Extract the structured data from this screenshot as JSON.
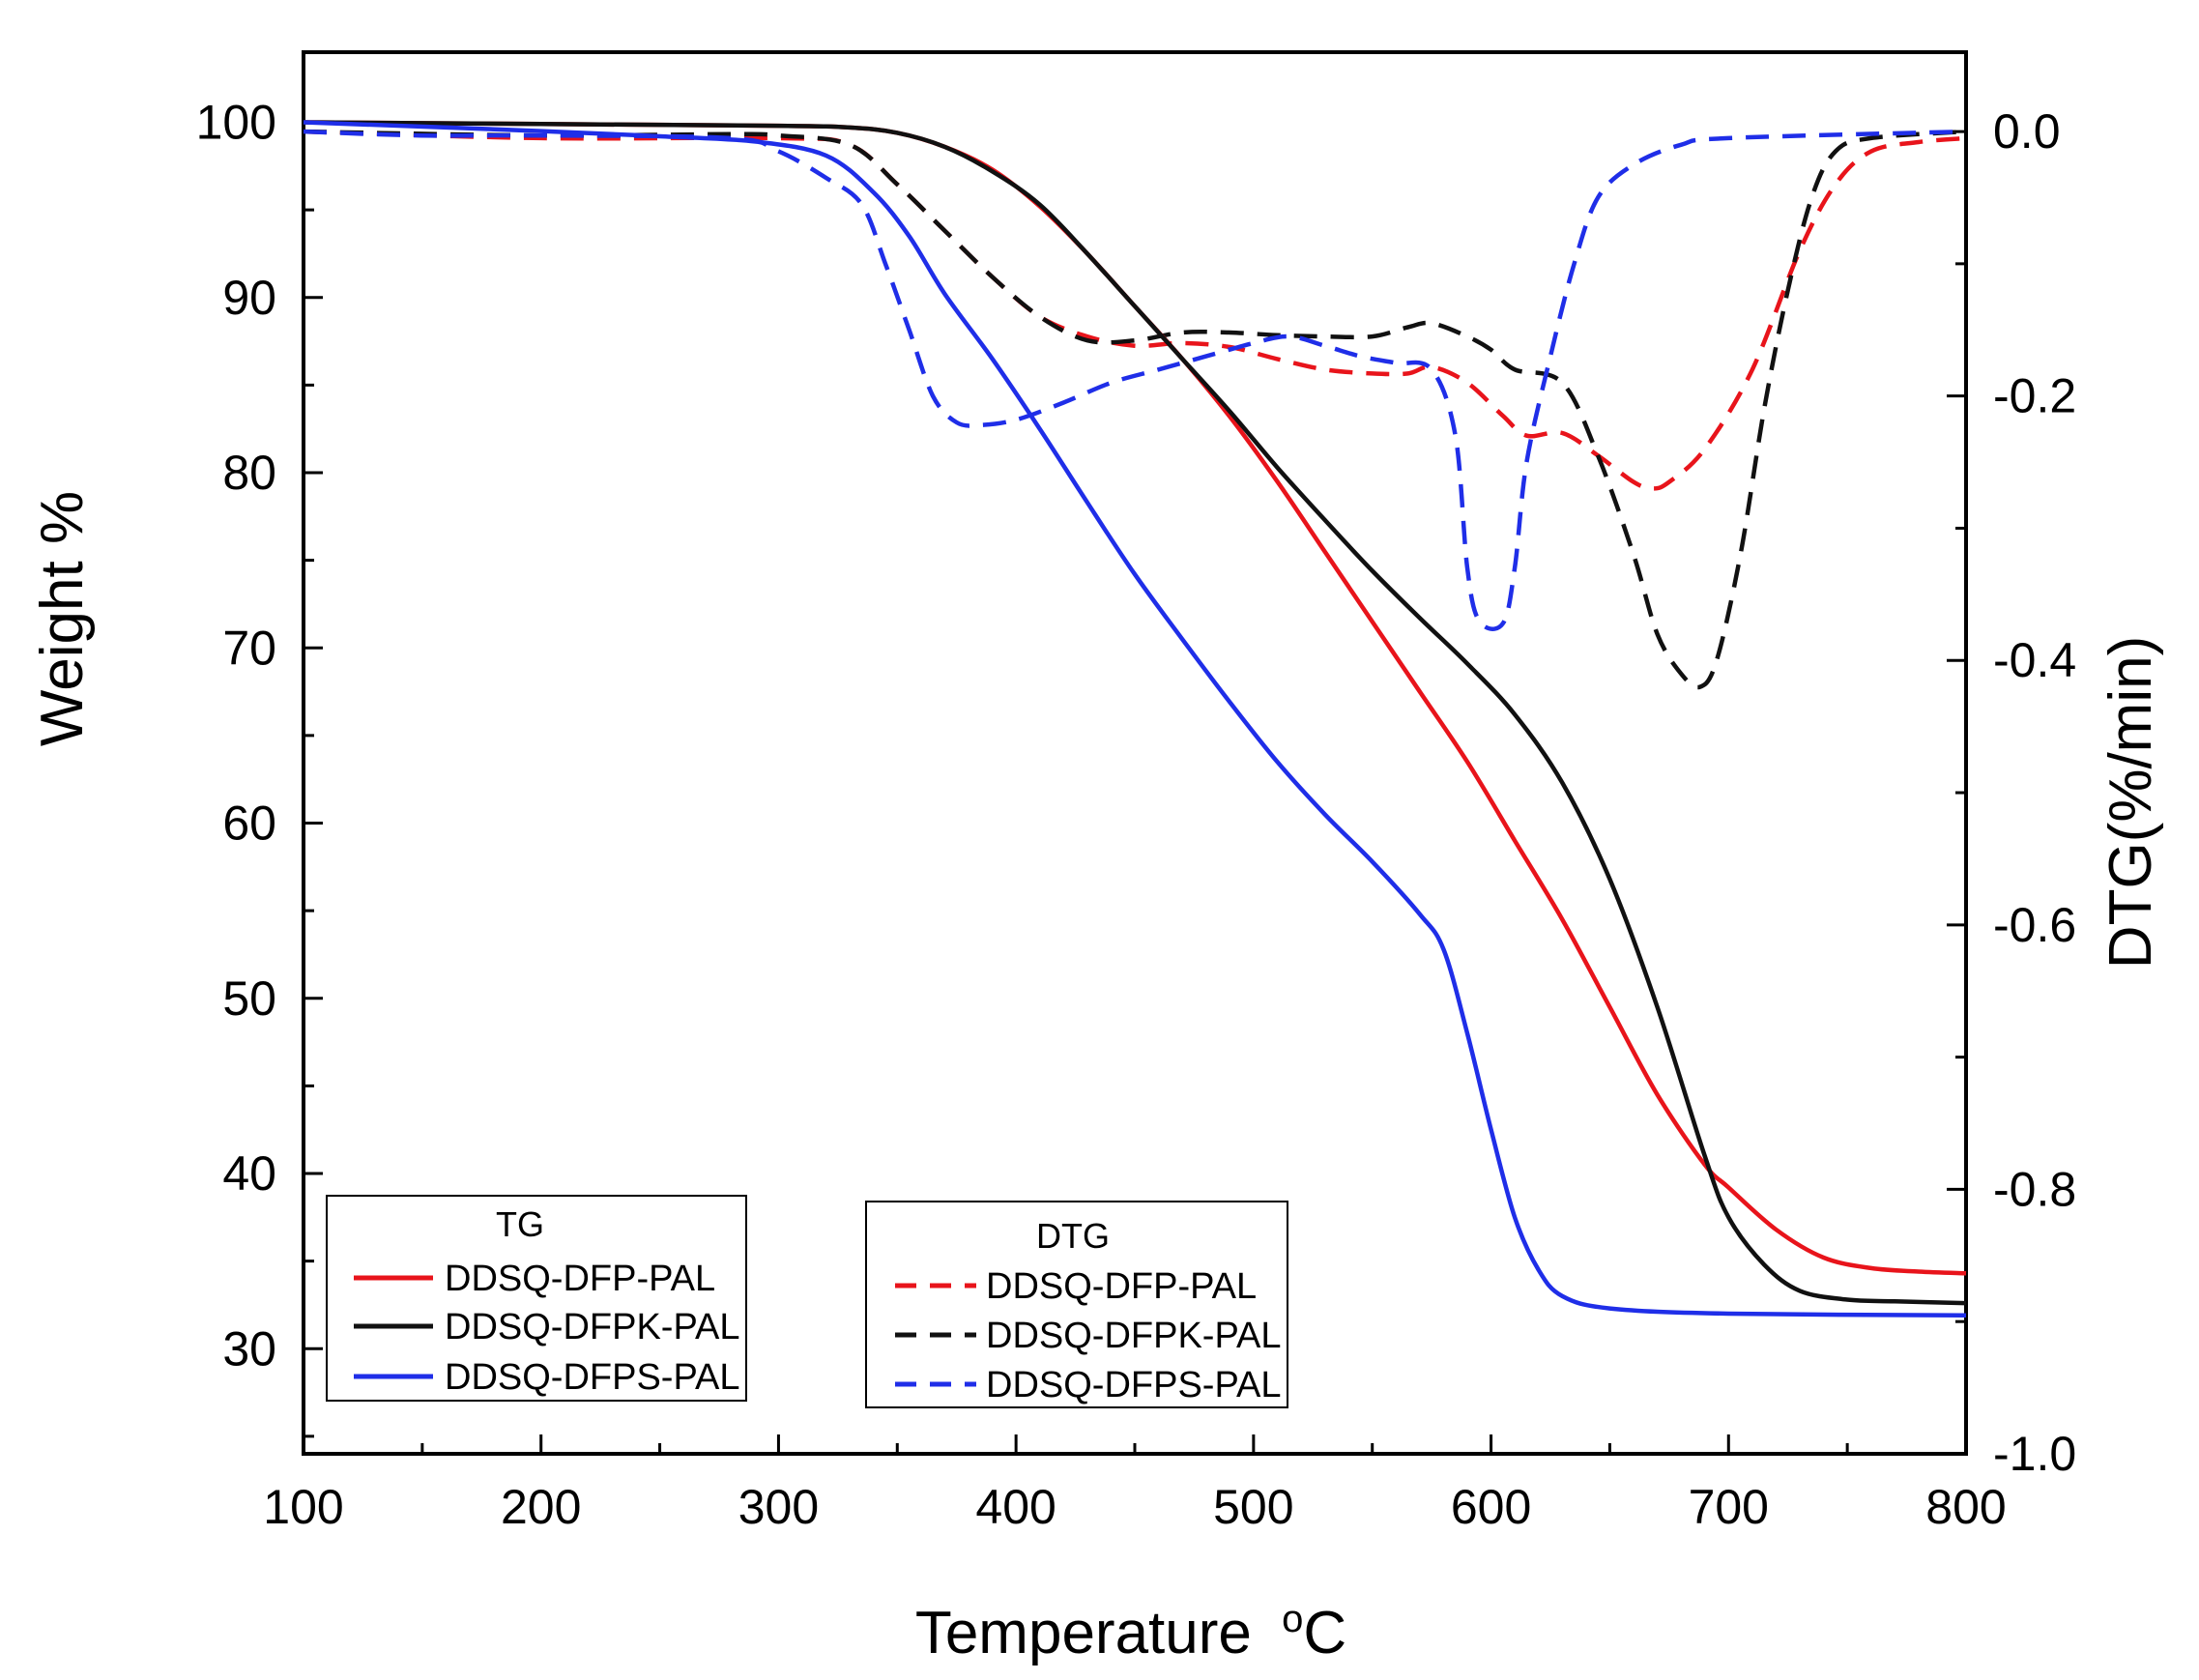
{
  "chart_data": {
    "type": "line",
    "title": "",
    "xlabel": "Temperature",
    "xlabel_unit": "°C",
    "ylabel_left": "Weight %",
    "ylabel_right": "DTG(%/min)",
    "xlim": [
      100,
      800
    ],
    "ylim_left": [
      24,
      104
    ],
    "ylim_right": [
      -1.0,
      0.06
    ],
    "x_ticks": [
      100,
      200,
      300,
      400,
      500,
      600,
      700,
      800
    ],
    "y_left_ticks": [
      30,
      40,
      50,
      60,
      70,
      80,
      90,
      100
    ],
    "y_right_ticks": [
      -1.0,
      -0.8,
      -0.6,
      -0.4,
      -0.2,
      0.0
    ],
    "y_right_tick_labels": [
      "-1.0",
      "-0.8",
      "-0.6",
      "-0.4",
      "-0.2",
      "0.0"
    ],
    "grid": false,
    "legends": {
      "tg": {
        "title": "TG",
        "position": "bottom-left"
      },
      "dtg": {
        "title": "DTG",
        "position": "bottom-center"
      }
    },
    "colors": {
      "red": "#e8141b",
      "black": "#111111",
      "blue": "#1f2ee8"
    },
    "tg_series": [
      {
        "name": "DDSQ-DFP-PAL",
        "color": "#e8141b",
        "points": [
          [
            100,
            100
          ],
          [
            200,
            99.9
          ],
          [
            300,
            99.8
          ],
          [
            330,
            99.7
          ],
          [
            350,
            99.4
          ],
          [
            370,
            98.6
          ],
          [
            390,
            97.3
          ],
          [
            410,
            95.2
          ],
          [
            430,
            92.5
          ],
          [
            450,
            89.5
          ],
          [
            470,
            86.5
          ],
          [
            490,
            83.2
          ],
          [
            510,
            79.5
          ],
          [
            530,
            75.5
          ],
          [
            550,
            71.5
          ],
          [
            570,
            67.5
          ],
          [
            590,
            63.5
          ],
          [
            610,
            59.0
          ],
          [
            630,
            54.5
          ],
          [
            650,
            49.5
          ],
          [
            670,
            44.5
          ],
          [
            690,
            40.5
          ],
          [
            700,
            39.2
          ],
          [
            720,
            36.8
          ],
          [
            740,
            35.2
          ],
          [
            760,
            34.6
          ],
          [
            780,
            34.4
          ],
          [
            800,
            34.3
          ]
        ]
      },
      {
        "name": "DDSQ-DFPK-PAL",
        "color": "#111111",
        "points": [
          [
            100,
            100
          ],
          [
            200,
            99.9
          ],
          [
            300,
            99.8
          ],
          [
            330,
            99.7
          ],
          [
            350,
            99.4
          ],
          [
            370,
            98.6
          ],
          [
            390,
            97.2
          ],
          [
            410,
            95.3
          ],
          [
            430,
            92.5
          ],
          [
            450,
            89.5
          ],
          [
            470,
            86.5
          ],
          [
            490,
            83.5
          ],
          [
            510,
            80.3
          ],
          [
            530,
            77.3
          ],
          [
            550,
            74.4
          ],
          [
            570,
            71.7
          ],
          [
            590,
            69.1
          ],
          [
            610,
            66.2
          ],
          [
            630,
            62.3
          ],
          [
            650,
            56.8
          ],
          [
            670,
            49.5
          ],
          [
            690,
            41.0
          ],
          [
            700,
            37.5
          ],
          [
            715,
            34.8
          ],
          [
            730,
            33.3
          ],
          [
            750,
            32.8
          ],
          [
            770,
            32.7
          ],
          [
            800,
            32.6
          ]
        ]
      },
      {
        "name": "DDSQ-DFPS-PAL",
        "color": "#1f2ee8",
        "points": [
          [
            100,
            100
          ],
          [
            200,
            99.5
          ],
          [
            250,
            99.2
          ],
          [
            290,
            98.9
          ],
          [
            320,
            98.1
          ],
          [
            340,
            96.0
          ],
          [
            355,
            93.5
          ],
          [
            370,
            90.2
          ],
          [
            390,
            86.5
          ],
          [
            410,
            82.5
          ],
          [
            430,
            78.3
          ],
          [
            450,
            74.2
          ],
          [
            470,
            70.5
          ],
          [
            490,
            66.9
          ],
          [
            510,
            63.5
          ],
          [
            530,
            60.5
          ],
          [
            550,
            57.8
          ],
          [
            570,
            54.8
          ],
          [
            580,
            52.8
          ],
          [
            590,
            48.0
          ],
          [
            600,
            42.5
          ],
          [
            610,
            37.5
          ],
          [
            620,
            34.5
          ],
          [
            630,
            33.0
          ],
          [
            650,
            32.3
          ],
          [
            700,
            32.0
          ],
          [
            800,
            31.9
          ]
        ]
      }
    ],
    "dtg_series": [
      {
        "name": "DDSQ-DFP-PAL",
        "color": "#e8141b",
        "points": [
          [
            100,
            0.0
          ],
          [
            200,
            -0.005
          ],
          [
            300,
            -0.005
          ],
          [
            330,
            -0.01
          ],
          [
            350,
            -0.04
          ],
          [
            370,
            -0.075
          ],
          [
            390,
            -0.11
          ],
          [
            410,
            -0.14
          ],
          [
            430,
            -0.155
          ],
          [
            450,
            -0.162
          ],
          [
            470,
            -0.16
          ],
          [
            490,
            -0.163
          ],
          [
            510,
            -0.172
          ],
          [
            530,
            -0.18
          ],
          [
            550,
            -0.183
          ],
          [
            565,
            -0.183
          ],
          [
            575,
            -0.178
          ],
          [
            590,
            -0.19
          ],
          [
            605,
            -0.215
          ],
          [
            615,
            -0.23
          ],
          [
            630,
            -0.228
          ],
          [
            645,
            -0.245
          ],
          [
            660,
            -0.265
          ],
          [
            668,
            -0.27
          ],
          [
            675,
            -0.265
          ],
          [
            690,
            -0.24
          ],
          [
            710,
            -0.18
          ],
          [
            730,
            -0.09
          ],
          [
            745,
            -0.04
          ],
          [
            760,
            -0.015
          ],
          [
            780,
            -0.008
          ],
          [
            800,
            -0.005
          ]
        ]
      },
      {
        "name": "DDSQ-DFPK-PAL",
        "color": "#111111",
        "points": [
          [
            100,
            0.0
          ],
          [
            200,
            -0.003
          ],
          [
            280,
            -0.002
          ],
          [
            300,
            -0.003
          ],
          [
            330,
            -0.01
          ],
          [
            350,
            -0.04
          ],
          [
            370,
            -0.075
          ],
          [
            390,
            -0.11
          ],
          [
            410,
            -0.14
          ],
          [
            430,
            -0.158
          ],
          [
            450,
            -0.158
          ],
          [
            470,
            -0.152
          ],
          [
            490,
            -0.152
          ],
          [
            510,
            -0.154
          ],
          [
            530,
            -0.155
          ],
          [
            550,
            -0.155
          ],
          [
            565,
            -0.148
          ],
          [
            575,
            -0.145
          ],
          [
            590,
            -0.155
          ],
          [
            600,
            -0.165
          ],
          [
            610,
            -0.18
          ],
          [
            630,
            -0.19
          ],
          [
            645,
            -0.245
          ],
          [
            660,
            -0.32
          ],
          [
            670,
            -0.38
          ],
          [
            680,
            -0.41
          ],
          [
            688,
            -0.42
          ],
          [
            695,
            -0.4
          ],
          [
            705,
            -0.32
          ],
          [
            715,
            -0.21
          ],
          [
            725,
            -0.12
          ],
          [
            735,
            -0.05
          ],
          [
            745,
            -0.015
          ],
          [
            760,
            -0.005
          ],
          [
            800,
            0.0
          ]
        ]
      },
      {
        "name": "DDSQ-DFPS-PAL",
        "color": "#1f2ee8",
        "points": [
          [
            100,
            0.0
          ],
          [
            150,
            -0.003
          ],
          [
            200,
            -0.003
          ],
          [
            280,
            -0.005
          ],
          [
            300,
            -0.015
          ],
          [
            320,
            -0.035
          ],
          [
            335,
            -0.055
          ],
          [
            345,
            -0.1
          ],
          [
            355,
            -0.15
          ],
          [
            365,
            -0.2
          ],
          [
            375,
            -0.22
          ],
          [
            385,
            -0.222
          ],
          [
            400,
            -0.218
          ],
          [
            420,
            -0.205
          ],
          [
            440,
            -0.19
          ],
          [
            460,
            -0.18
          ],
          [
            480,
            -0.17
          ],
          [
            500,
            -0.16
          ],
          [
            515,
            -0.155
          ],
          [
            530,
            -0.162
          ],
          [
            545,
            -0.17
          ],
          [
            560,
            -0.175
          ],
          [
            575,
            -0.18
          ],
          [
            585,
            -0.23
          ],
          [
            590,
            -0.33
          ],
          [
            595,
            -0.37
          ],
          [
            605,
            -0.372
          ],
          [
            610,
            -0.33
          ],
          [
            615,
            -0.25
          ],
          [
            625,
            -0.17
          ],
          [
            635,
            -0.1
          ],
          [
            645,
            -0.05
          ],
          [
            660,
            -0.025
          ],
          [
            680,
            -0.01
          ],
          [
            700,
            -0.005
          ],
          [
            800,
            0.0
          ]
        ]
      }
    ]
  }
}
